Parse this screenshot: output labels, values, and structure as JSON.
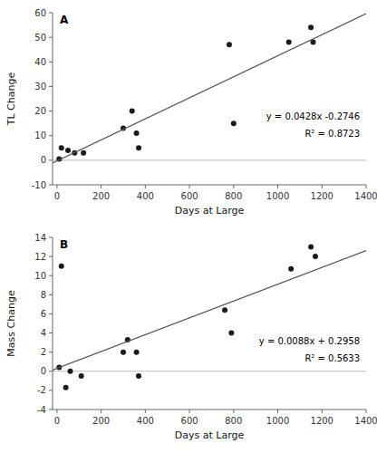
{
  "chart_data": [
    {
      "type": "scatter",
      "title": "A",
      "xlabel": "Days at Large",
      "ylabel": "TL Change",
      "xlim": [
        -20,
        1400
      ],
      "ylim": [
        -10,
        60
      ],
      "xticks": [
        0,
        200,
        400,
        600,
        800,
        1000,
        1200,
        1400
      ],
      "yticks": [
        -10,
        0,
        10,
        20,
        30,
        40,
        50,
        60
      ],
      "annotations": [
        "y = 0.0428x -0.2746",
        "R² = 0.8723"
      ],
      "series": [
        {
          "type": "scatter",
          "color": "#1a1a1a",
          "x": [
            10,
            20,
            50,
            80,
            120,
            300,
            340,
            360,
            370,
            780,
            800,
            1050,
            1150,
            1160
          ],
          "values": [
            0.5,
            5,
            4,
            3,
            3,
            13,
            20,
            11,
            5,
            47,
            15,
            48,
            54,
            48
          ]
        },
        {
          "type": "line",
          "color": "#555555",
          "x": [
            -20,
            1400
          ],
          "values": [
            -1.1306,
            59.6454
          ]
        }
      ]
    },
    {
      "type": "scatter",
      "title": "B",
      "xlabel": "Days at Large",
      "ylabel": "Mass Change",
      "xlim": [
        -20,
        1400
      ],
      "ylim": [
        -4,
        14
      ],
      "xticks": [
        0,
        200,
        400,
        600,
        800,
        1000,
        1200,
        1400
      ],
      "yticks": [
        -4,
        -2,
        0,
        2,
        4,
        6,
        8,
        10,
        12,
        14
      ],
      "annotations": [
        "y = 0.0088x + 0.2958",
        "R² = 0.5633"
      ],
      "series": [
        {
          "type": "scatter",
          "color": "#1a1a1a",
          "x": [
            10,
            20,
            40,
            60,
            110,
            300,
            320,
            360,
            370,
            760,
            790,
            1060,
            1150,
            1170
          ],
          "values": [
            0.4,
            11,
            -1.7,
            0,
            -0.5,
            2,
            3.3,
            2,
            -0.5,
            6.4,
            4,
            10.7,
            13,
            12
          ]
        },
        {
          "type": "line",
          "color": "#555555",
          "x": [
            -20,
            1400
          ],
          "values": [
            0.1198,
            12.6158
          ]
        }
      ]
    }
  ]
}
